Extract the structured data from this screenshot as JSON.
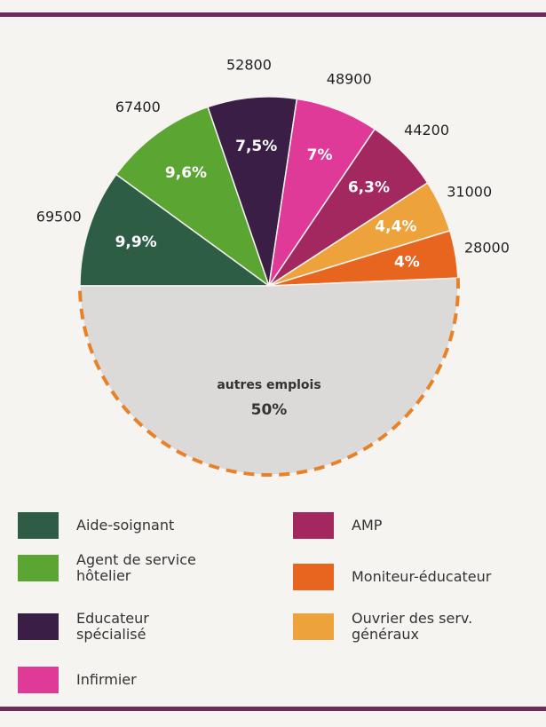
{
  "chart_data": {
    "type": "pie",
    "categories": [
      "Aide-soignant",
      "Agent de service hôtelier",
      "Educateur spécialisé",
      "Infirmier",
      "AMP",
      "Ouvrier des serv. généraux",
      "Moniteur-éducateur",
      "autres emplois"
    ],
    "values": [
      9.9,
      9.6,
      7.5,
      7,
      6.3,
      4.4,
      4,
      50
    ],
    "value_labels": [
      "9,9%",
      "9,6%",
      "7,5%",
      "7%",
      "6,3%",
      "4,4%",
      "4%",
      "50%"
    ],
    "counts": [
      69500,
      67400,
      52800,
      48900,
      44200,
      31000,
      28000,
      null
    ],
    "colors": [
      "#2d5e45",
      "#5ba532",
      "#3b1e46",
      "#e03a98",
      "#a2285f",
      "#eda23c",
      "#e8651f",
      "#dcdad8"
    ]
  }
}
